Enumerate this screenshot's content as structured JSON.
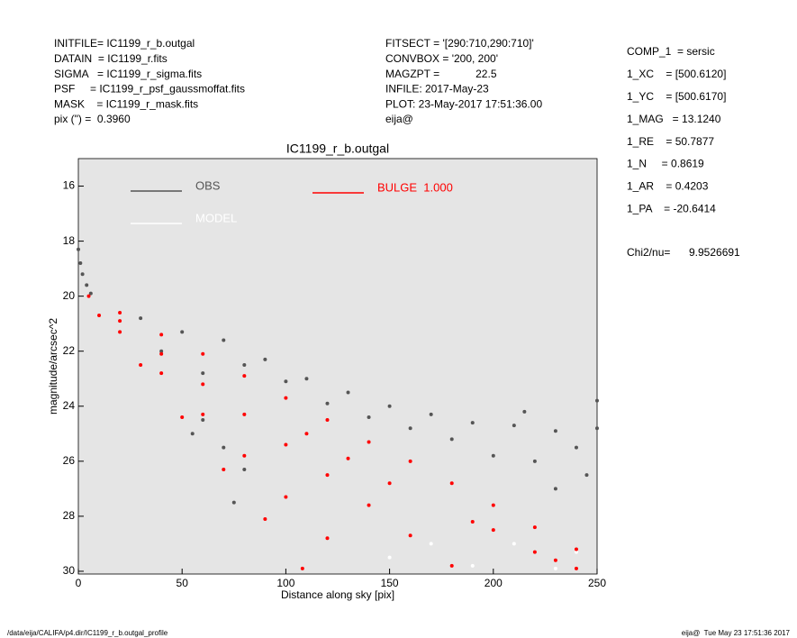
{
  "header": {
    "left": [
      "INITFILE= IC1199_r_b.outgal",
      "DATAIN  = IC1199_r.fits",
      "SIGMA   = IC1199_r_sigma.fits",
      "PSF     = IC1199_r_psf_gaussmoffat.fits",
      "MASK    = IC1199_r_mask.fits",
      "pix (\") =  0.3960"
    ],
    "middle": [
      "FITSECT = '[290:710,290:710]'",
      "CONVBOX = '200, 200'",
      "MAGZPT =            22.5",
      "INFILE: 2017-May-23",
      "PLOT: 23-May-2017 17:51:36.00",
      "eija@"
    ],
    "right": [
      "COMP_1  = sersic",
      "1_XC    = [500.6120]",
      "1_YC    = [500.6170]",
      "1_MAG   = 13.1240",
      "1_RE    = 50.7877",
      "1_N     = 0.8619",
      "1_AR    = 0.4203",
      "1_PA    = -20.6414"
    ],
    "chi2": {
      "label": "Chi2/nu=",
      "value": "9.9526691"
    }
  },
  "footer": {
    "path": "/data/eija/CALIFA/p4.dir/IC1199_r_b.outgal_profile",
    "stamp": "eija@  Tue May 23 17:51:36 2017"
  },
  "chart_data": {
    "type": "scatter",
    "title": "IC1199_r_b.outgal",
    "x_label": "Distance along sky [pix]",
    "y_label": "magnitude/arcsec^2",
    "xlim": [
      0,
      250
    ],
    "ylim": [
      30.1,
      15
    ],
    "xticks": [
      0,
      50,
      100,
      150,
      200,
      250
    ],
    "yticks": [
      16,
      18,
      20,
      22,
      24,
      26,
      28,
      30
    ],
    "background": "#e5e5e5",
    "series": [
      {
        "name": "OBS",
        "color": "#555555",
        "x": [
          0,
          1,
          2,
          4,
          6,
          30,
          50,
          70,
          90,
          110,
          130,
          150,
          170,
          190,
          210,
          230,
          250,
          240,
          220,
          200,
          180,
          160,
          140,
          120,
          100,
          80,
          60,
          40,
          60,
          70,
          80,
          75,
          55,
          230,
          245,
          215,
          250
        ],
        "values": [
          18.3,
          18.8,
          19.2,
          19.6,
          19.9,
          20.8,
          21.3,
          21.6,
          22.3,
          23.0,
          23.5,
          24.0,
          24.3,
          24.6,
          24.7,
          24.9,
          24.8,
          25.5,
          26.0,
          25.8,
          25.2,
          24.8,
          24.4,
          23.9,
          23.1,
          22.5,
          22.8,
          22.0,
          24.5,
          25.5,
          26.3,
          27.5,
          25.0,
          27.0,
          26.5,
          24.2,
          23.8
        ]
      },
      {
        "name": "MODEL",
        "color": "#ffffff",
        "x": [
          150,
          170,
          190,
          210,
          230,
          240
        ],
        "values": [
          29.5,
          29.0,
          29.8,
          29.0,
          29.9,
          29.3
        ]
      },
      {
        "name": "BULGE  1.000",
        "color": "#ff0000",
        "x": [
          5,
          20,
          40,
          60,
          80,
          100,
          120,
          140,
          160,
          180,
          200,
          220,
          240,
          20,
          40,
          60,
          80,
          100,
          120,
          140,
          160,
          180,
          20,
          40,
          60,
          80,
          100,
          120,
          10,
          30,
          50,
          70,
          90,
          108,
          200,
          220,
          240,
          230,
          190,
          150,
          130,
          110
        ],
        "values": [
          20.0,
          20.6,
          21.4,
          22.1,
          22.9,
          23.7,
          24.5,
          25.3,
          26.0,
          26.8,
          27.6,
          28.4,
          29.2,
          20.9,
          22.1,
          23.2,
          24.3,
          25.4,
          26.5,
          27.6,
          28.7,
          29.8,
          21.3,
          22.8,
          24.3,
          25.8,
          27.3,
          28.8,
          20.7,
          22.5,
          24.4,
          26.3,
          28.1,
          29.9,
          28.5,
          29.3,
          29.9,
          29.6,
          28.2,
          26.8,
          25.9,
          25.0
        ]
      }
    ]
  }
}
